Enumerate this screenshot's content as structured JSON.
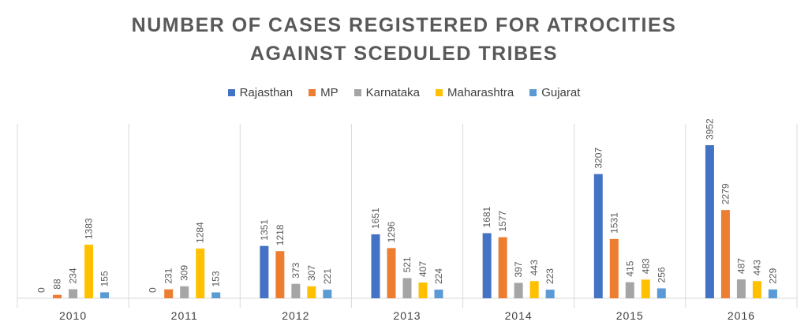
{
  "chart_data": {
    "type": "bar",
    "title": "NUMBER OF CASES REGISTERED FOR ATROCITIES AGAINST SCEDULED TRIBES",
    "title_lines": [
      "NUMBER OF CASES REGISTERED FOR ATROCITIES",
      "AGAINST SCEDULED TRIBES"
    ],
    "categories": [
      "2010",
      "2011",
      "2012",
      "2013",
      "2014",
      "2015",
      "2016"
    ],
    "series": [
      {
        "name": "Rajasthan",
        "color": "#4472C4",
        "values": [
          0,
          0,
          1351,
          1651,
          1681,
          3207,
          3952
        ]
      },
      {
        "name": "MP",
        "color": "#ED7D31",
        "values": [
          88,
          231,
          1218,
          1296,
          1577,
          1531,
          2279
        ]
      },
      {
        "name": "Karnataka",
        "color": "#A5A5A5",
        "values": [
          234,
          309,
          373,
          521,
          397,
          415,
          487
        ]
      },
      {
        "name": "Maharashtra",
        "color": "#FFC000",
        "values": [
          1383,
          1284,
          307,
          407,
          443,
          483,
          443
        ]
      },
      {
        "name": "Gujarat",
        "color": "#5B9BD5",
        "values": [
          155,
          153,
          221,
          224,
          223,
          256,
          229
        ]
      }
    ],
    "ylim": [
      0,
      4400
    ],
    "legend_position": "top",
    "grid": "vertical category separators",
    "data_labels": "rotated above bars"
  }
}
